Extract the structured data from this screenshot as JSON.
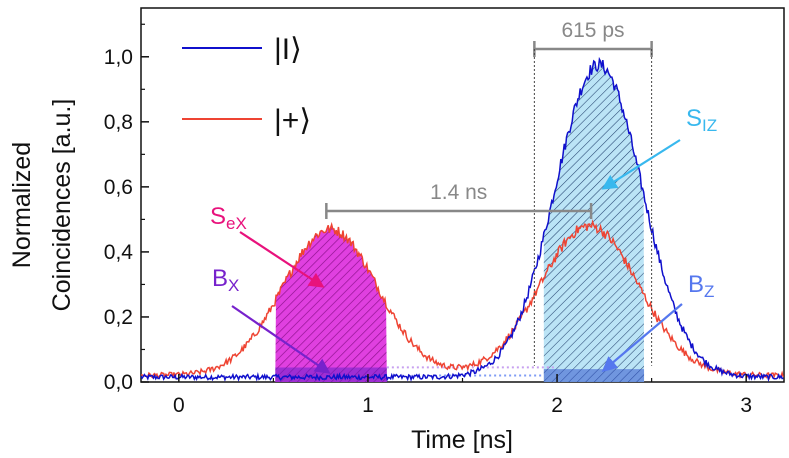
{
  "chart_data": {
    "type": "line",
    "xlabel": "Time [ns]",
    "ylabel_line1": "Normalized",
    "ylabel_line2": "Coincidences [a.u.]",
    "xlim": [
      -0.2,
      3.2
    ],
    "ylim": [
      0.0,
      1.15
    ],
    "x_ticks": [
      0,
      1,
      2,
      3
    ],
    "y_ticks": [
      0.0,
      0.2,
      0.4,
      0.6,
      0.8,
      1.0
    ],
    "x_tick_labels": [
      "0",
      "1",
      "2",
      "3"
    ],
    "y_tick_labels": [
      "0,0",
      "0,2",
      "0,4",
      "0,6",
      "0,8",
      "1,0"
    ],
    "legend_position": "top-left",
    "series": [
      {
        "name": "|I⟩",
        "color": "#1010cc",
        "background": 0.015,
        "peaks": [
          {
            "center": 2.22,
            "sigma": 0.23,
            "amplitude": 0.96
          }
        ]
      },
      {
        "name": "|+⟩",
        "color": "#ee4433",
        "background": 0.02,
        "peaks": [
          {
            "center": 0.8,
            "sigma": 0.25,
            "amplitude": 0.45
          },
          {
            "center": 2.17,
            "sigma": 0.26,
            "amplitude": 0.46
          }
        ]
      }
    ],
    "shaded_regions": [
      {
        "name": "S_eX",
        "x0": 0.51,
        "x1": 1.1,
        "series": 1,
        "color": "#e040e0",
        "hatched": true
      },
      {
        "name": "S_IZ",
        "x0": 1.93,
        "x1": 2.46,
        "series": 0,
        "color": "#b7e3f5",
        "hatched": true
      },
      {
        "name": "B_X",
        "x0": 0.51,
        "x1": 1.1,
        "level": 0.02,
        "color": "#6a1fc8"
      },
      {
        "name": "B_Z",
        "x0": 1.93,
        "x1": 2.46,
        "level": 0.015,
        "color": "#3355cc"
      }
    ],
    "annotations": {
      "ps_label": "615 ps",
      "ps_range": [
        1.88,
        2.5
      ],
      "ns_label": "1.4 ns",
      "ns_range": [
        0.78,
        2.18
      ],
      "sex_label": {
        "main": "S",
        "sub": "eX",
        "color": "#e8127c"
      },
      "siz_label": {
        "main": "S",
        "sub": "IZ",
        "color": "#38b8ee"
      },
      "bx_label": {
        "main": "B",
        "sub": "X",
        "color": "#7722cc"
      },
      "bz_label": {
        "main": "B",
        "sub": "Z",
        "color": "#5577ee"
      },
      "dim_color": "#888888"
    }
  }
}
